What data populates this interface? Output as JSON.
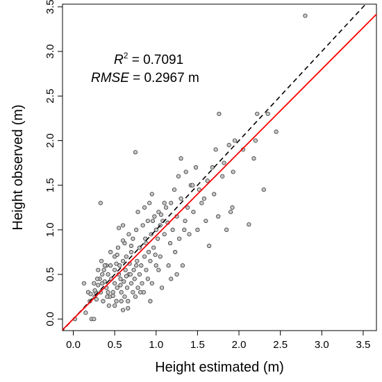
{
  "chart_data": {
    "type": "scatter",
    "title": "",
    "xlabel": "Height estimated (m)",
    "ylabel": "Height observed (m)",
    "xlim": [
      -0.13,
      3.66
    ],
    "ylim": [
      -0.13,
      3.53
    ],
    "xticks": [
      0.0,
      0.5,
      1.0,
      1.5,
      2.0,
      2.5,
      3.0,
      3.5
    ],
    "xtick_labels": [
      "0.0",
      "0.5",
      "1.0",
      "1.5",
      "2.0",
      "2.5",
      "3.0",
      "3.5"
    ],
    "yticks": [
      0.0,
      0.5,
      1.0,
      1.5,
      2.0,
      2.5,
      3.0,
      3.5
    ],
    "ytick_labels": [
      "0.0",
      "0.5",
      "1.0",
      "1.5",
      "2.0",
      "2.5",
      "3.0",
      "3.5"
    ],
    "grid": false,
    "annotations": {
      "r2_symbol": "R",
      "r2_exponent": "2",
      "r2_value": " = 0.7091",
      "rmse_symbol": "RMSE",
      "rmse_value": " = 0.2967 m"
    },
    "lines": {
      "one_to_one": {
        "style": "dashed",
        "color": "#000000",
        "slope": 1.0,
        "intercept": 0.0
      },
      "fit": {
        "style": "solid",
        "color": "#ff0000",
        "slope": 0.9336,
        "intercept": 0.0
      }
    },
    "colors": {
      "point_fill": "#c8c8c8",
      "point_edge": "#333333"
    },
    "series": [
      {
        "points": [
          [
            0.02,
            0.0
          ],
          [
            0.13,
            0.4
          ],
          [
            0.15,
            0.07
          ],
          [
            0.18,
            0.3
          ],
          [
            0.2,
            0.2
          ],
          [
            0.22,
            0.0
          ],
          [
            0.25,
            0.0
          ],
          [
            0.25,
            0.4
          ],
          [
            0.26,
            0.25
          ],
          [
            0.27,
            0.3
          ],
          [
            0.28,
            0.22
          ],
          [
            0.3,
            0.38
          ],
          [
            0.3,
            0.55
          ],
          [
            0.32,
            0.45
          ],
          [
            0.33,
            0.3
          ],
          [
            0.34,
            0.65
          ],
          [
            0.35,
            0.4
          ],
          [
            0.36,
            0.2
          ],
          [
            0.37,
            0.55
          ],
          [
            0.38,
            0.42
          ],
          [
            0.4,
            0.35
          ],
          [
            0.4,
            0.6
          ],
          [
            0.42,
            0.3
          ],
          [
            0.42,
            0.5
          ],
          [
            0.43,
            0.15
          ],
          [
            0.44,
            0.25
          ],
          [
            0.45,
            0.6
          ],
          [
            0.46,
            0.45
          ],
          [
            0.48,
            0.3
          ],
          [
            0.5,
            0.4
          ],
          [
            0.5,
            0.55
          ],
          [
            0.5,
            0.7
          ],
          [
            0.52,
            0.2
          ],
          [
            0.53,
            0.35
          ],
          [
            0.54,
            0.8
          ],
          [
            0.55,
            0.5
          ],
          [
            0.55,
            1.02
          ],
          [
            0.56,
            0.6
          ],
          [
            0.57,
            0.45
          ],
          [
            0.58,
            0.3
          ],
          [
            0.6,
            0.1
          ],
          [
            0.6,
            0.65
          ],
          [
            0.61,
            0.42
          ],
          [
            0.62,
            0.25
          ],
          [
            0.62,
            0.85
          ],
          [
            0.63,
            0.55
          ],
          [
            0.64,
            0.7
          ],
          [
            0.65,
            0.35
          ],
          [
            0.66,
            0.2
          ],
          [
            0.67,
            0.5
          ],
          [
            0.67,
            0.95
          ],
          [
            0.68,
            0.62
          ],
          [
            0.7,
            0.4
          ],
          [
            0.7,
            0.75
          ],
          [
            0.72,
            0.3
          ],
          [
            0.72,
            0.9
          ],
          [
            0.73,
            0.55
          ],
          [
            0.74,
            0.45
          ],
          [
            0.75,
            0.25
          ],
          [
            0.76,
            1.0
          ],
          [
            0.77,
            0.65
          ],
          [
            0.78,
            0.35
          ],
          [
            0.78,
            1.2
          ],
          [
            0.8,
            0.5
          ],
          [
            0.8,
            0.8
          ],
          [
            0.82,
            0.6
          ],
          [
            0.83,
            0.4
          ],
          [
            0.84,
            1.05
          ],
          [
            0.85,
            0.3
          ],
          [
            0.86,
            0.7
          ],
          [
            0.87,
            0.9
          ],
          [
            0.88,
            0.55
          ],
          [
            0.9,
            1.1
          ],
          [
            0.9,
            0.45
          ],
          [
            0.91,
            0.75
          ],
          [
            0.92,
            1.3
          ],
          [
            0.93,
            0.65
          ],
          [
            0.94,
            0.95
          ],
          [
            0.95,
            0.4
          ],
          [
            0.95,
            1.4
          ],
          [
            0.97,
            0.8
          ],
          [
            0.98,
            1.15
          ],
          [
            1.0,
            0.6
          ],
          [
            1.0,
            1.0
          ],
          [
            1.02,
            0.9
          ],
          [
            1.03,
            1.2
          ],
          [
            1.05,
            0.7
          ],
          [
            1.05,
            1.05
          ],
          [
            1.07,
            0.35
          ],
          [
            1.08,
            1.1
          ],
          [
            1.1,
            0.95
          ],
          [
            1.12,
            1.25
          ],
          [
            1.15,
            0.6
          ],
          [
            1.17,
            0.85
          ],
          [
            1.18,
            1.3
          ],
          [
            1.2,
            1.0
          ],
          [
            1.22,
            1.45
          ],
          [
            1.23,
            0.75
          ],
          [
            1.25,
            1.15
          ],
          [
            1.27,
            1.6
          ],
          [
            1.28,
            0.9
          ],
          [
            1.3,
            1.35
          ],
          [
            1.32,
            0.6
          ],
          [
            1.35,
            1.1
          ],
          [
            1.36,
            1.65
          ],
          [
            1.38,
            1.25
          ],
          [
            1.4,
            0.95
          ],
          [
            1.42,
            1.5
          ],
          [
            1.45,
            1.2
          ],
          [
            1.48,
            1.7
          ],
          [
            1.5,
            1.0
          ],
          [
            1.52,
            1.45
          ],
          [
            1.55,
            1.3
          ],
          [
            1.6,
            1.1
          ],
          [
            1.62,
            1.55
          ],
          [
            1.64,
            0.82
          ],
          [
            1.68,
            1.7
          ],
          [
            1.7,
            1.4
          ],
          [
            1.72,
            1.9
          ],
          [
            1.75,
            1.15
          ],
          [
            1.76,
            2.3
          ],
          [
            1.8,
            1.6
          ],
          [
            1.82,
            1.75
          ],
          [
            1.85,
            1.0
          ],
          [
            1.88,
            1.95
          ],
          [
            1.9,
            1.2
          ],
          [
            1.92,
            1.25
          ],
          [
            1.93,
            1.65
          ],
          [
            1.95,
            2.0
          ],
          [
            2.05,
            1.9
          ],
          [
            2.12,
            1.06
          ],
          [
            2.18,
            1.8
          ],
          [
            2.2,
            2.0
          ],
          [
            2.22,
            2.3
          ],
          [
            2.3,
            1.45
          ],
          [
            2.35,
            2.3
          ],
          [
            2.45,
            2.1
          ],
          [
            2.8,
            3.4
          ],
          [
            0.33,
            1.3
          ],
          [
            0.75,
            1.87
          ],
          [
            0.48,
            0.26
          ],
          [
            0.58,
            0.2
          ],
          [
            0.66,
            0.12
          ],
          [
            0.26,
            0.32
          ],
          [
            0.38,
            0.6
          ],
          [
            0.45,
            0.75
          ],
          [
            0.52,
            0.62
          ],
          [
            0.6,
            0.88
          ],
          [
            0.69,
            0.5
          ],
          [
            0.86,
            1.25
          ],
          [
            0.96,
            1.1
          ],
          [
            1.1,
            1.3
          ],
          [
            1.18,
            0.45
          ],
          [
            1.3,
            1.8
          ],
          [
            1.44,
            1.5
          ],
          [
            1.58,
            1.35
          ],
          [
            0.21,
            0.28
          ],
          [
            0.35,
            0.5
          ],
          [
            0.53,
            0.72
          ],
          [
            0.7,
            0.82
          ],
          [
            0.88,
            0.85
          ],
          [
            1.03,
            0.55
          ],
          [
            1.14,
            1.08
          ],
          [
            1.25,
            0.5
          ],
          [
            0.29,
            0.45
          ],
          [
            0.57,
            0.38
          ],
          [
            0.81,
            0.3
          ],
          [
            0.99,
            0.72
          ],
          [
            1.34,
            1.0
          ],
          [
            0.5,
            0.15
          ],
          [
            0.93,
            0.2
          ],
          [
            0.64,
            0.48
          ],
          [
            0.41,
            0.25
          ],
          [
            0.76,
            0.6
          ],
          [
            1.06,
            1.17
          ],
          [
            0.6,
            1.05
          ]
        ]
      }
    ]
  }
}
